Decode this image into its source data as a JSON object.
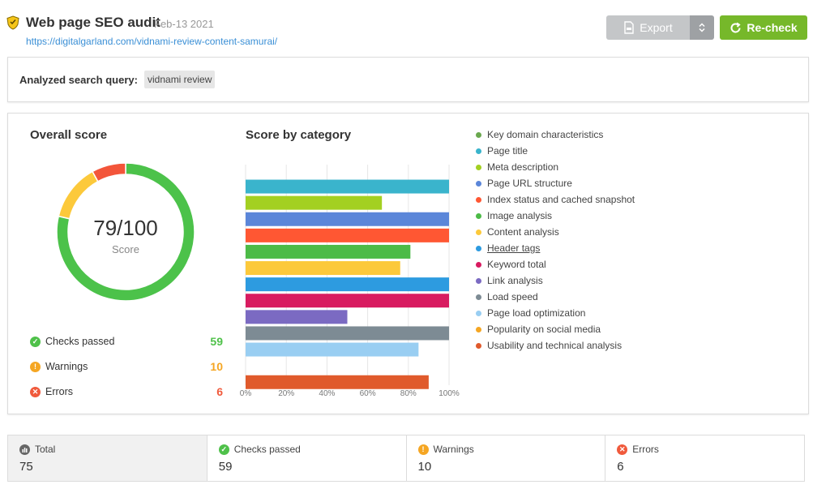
{
  "header": {
    "title": "Web page SEO audit",
    "date": "Feb-13 2021",
    "url": "https://digitalgarland.com/vidnami-review-content-samurai/",
    "export_label": "Export",
    "recheck_label": "Re-check"
  },
  "query": {
    "label": "Analyzed search query:",
    "value": "vidnami review"
  },
  "overall": {
    "heading": "Overall score",
    "score_text": "79/100",
    "score_caption": "Score",
    "donut": {
      "passed": 59,
      "warnings": 10,
      "errors": 6,
      "total": 75
    },
    "stats": [
      {
        "label": "Checks passed",
        "value": "59",
        "color": "#4fc14a",
        "icon": "check-icon"
      },
      {
        "label": "Warnings",
        "value": "10",
        "color": "#f5a623",
        "icon": "exclamation-icon"
      },
      {
        "label": "Errors",
        "value": "6",
        "color": "#f05a3c",
        "icon": "x-icon"
      }
    ]
  },
  "category": {
    "heading": "Score by category",
    "legend": [
      {
        "label": "Key domain characteristics",
        "color": "#6aa84f"
      },
      {
        "label": "Page title",
        "color": "#3ab4cc"
      },
      {
        "label": "Meta description",
        "color": "#a3d021"
      },
      {
        "label": "Page URL structure",
        "color": "#5b86d9"
      },
      {
        "label": "Index status and cached snapshot",
        "color": "#ff5733"
      },
      {
        "label": "Image analysis",
        "color": "#4cbb47"
      },
      {
        "label": "Content analysis",
        "color": "#fcc93b"
      },
      {
        "label": "Header tags",
        "color": "#2d9be0",
        "underline": true
      },
      {
        "label": "Keyword total",
        "color": "#d81b60"
      },
      {
        "label": "Link analysis",
        "color": "#7b6ac2"
      },
      {
        "label": "Load speed",
        "color": "#7d8b94"
      },
      {
        "label": "Page load optimization",
        "color": "#99cef2"
      },
      {
        "label": "Popularity on social media",
        "color": "#f5a623"
      },
      {
        "label": "Usability and technical analysis",
        "color": "#e05a2c"
      }
    ]
  },
  "chart_data": {
    "type": "bar",
    "orientation": "horizontal",
    "categories": [
      "Key domain characteristics",
      "Page title",
      "Meta description",
      "Page URL structure",
      "Index status and cached snapshot",
      "Image analysis",
      "Content analysis",
      "Header tags",
      "Keyword total",
      "Link analysis",
      "Load speed",
      "Page load optimization",
      "Popularity on social media",
      "Usability and technical analysis"
    ],
    "values": [
      0,
      100,
      67,
      100,
      100,
      81,
      76,
      100,
      100,
      50,
      100,
      85,
      0,
      90
    ],
    "colors": [
      "#6aa84f",
      "#3ab4cc",
      "#a3d021",
      "#5b86d9",
      "#ff5733",
      "#4cbb47",
      "#fcc93b",
      "#2d9be0",
      "#d81b60",
      "#7b6ac2",
      "#7d8b94",
      "#99cef2",
      "#f5a623",
      "#e05a2c"
    ],
    "xticks": [
      "0%",
      "20%",
      "40%",
      "60%",
      "80%",
      "100%"
    ],
    "xlim": [
      0,
      100
    ],
    "grid": true
  },
  "summary": [
    {
      "label": "Total",
      "value": "75",
      "icon": "bar-chart-icon",
      "color": "#666666"
    },
    {
      "label": "Checks passed",
      "value": "59",
      "icon": "check-icon",
      "color": "#4fc14a"
    },
    {
      "label": "Warnings",
      "value": "10",
      "icon": "exclamation-icon",
      "color": "#f5a623"
    },
    {
      "label": "Errors",
      "value": "6",
      "icon": "x-icon",
      "color": "#f05a3c"
    }
  ]
}
